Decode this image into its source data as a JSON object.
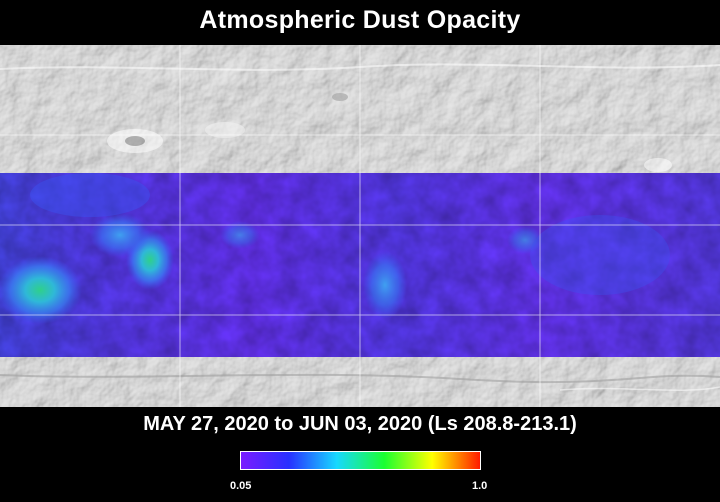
{
  "title": "Atmospheric Dust Opacity",
  "date_range": "MAY 27, 2020 to JUN 03, 2020 (Ls 208.8-213.1)",
  "colorbar": {
    "min_label": "0.05",
    "max_label": "1.0",
    "stops": [
      "#7a1cff",
      "#2830ff",
      "#18d8ff",
      "#1aff30",
      "#ffff00",
      "#ff1a00"
    ]
  },
  "colors": {
    "background": "#000000",
    "terrain": "#cfcfcf",
    "dust_low": "#6a33ff",
    "dust_mid": "#3b3bf0",
    "grid": "#ffffff"
  }
}
